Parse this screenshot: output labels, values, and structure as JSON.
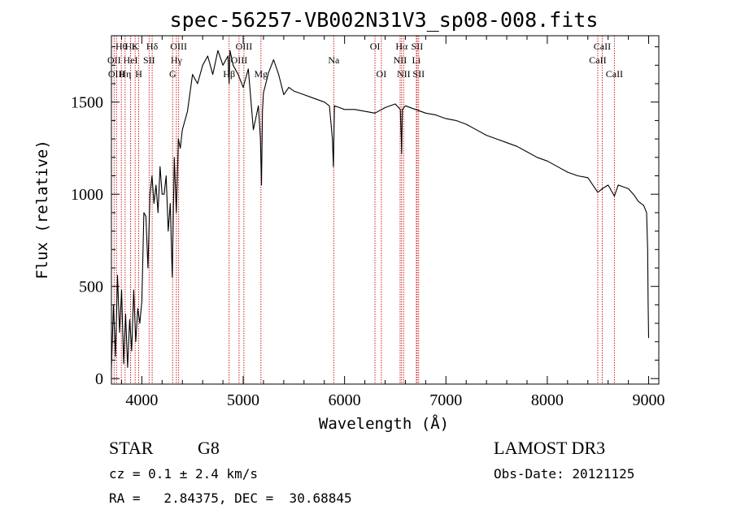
{
  "chart_data": {
    "type": "line",
    "title": "spec-56257-VB002N31V3_sp08-008.fits",
    "xlabel": "Wavelength (Å)",
    "ylabel": "Flux (relative)",
    "xlim": [
      3700,
      9100
    ],
    "ylim": [
      -30,
      1860
    ],
    "xticks": [
      4000,
      5000,
      6000,
      7000,
      8000,
      9000
    ],
    "yticks": [
      0,
      500,
      1000,
      1500
    ],
    "series": [
      {
        "name": "flux",
        "x": [
          3700,
          3720,
          3740,
          3760,
          3780,
          3800,
          3820,
          3840,
          3860,
          3880,
          3900,
          3920,
          3940,
          3960,
          3980,
          4000,
          4020,
          4040,
          4060,
          4080,
          4100,
          4120,
          4140,
          4160,
          4180,
          4200,
          4220,
          4240,
          4260,
          4280,
          4300,
          4320,
          4340,
          4360,
          4380,
          4400,
          4450,
          4500,
          4550,
          4600,
          4650,
          4700,
          4750,
          4800,
          4850,
          4861,
          4870,
          4900,
          4950,
          5000,
          5050,
          5100,
          5150,
          5170,
          5180,
          5190,
          5200,
          5250,
          5300,
          5350,
          5400,
          5450,
          5500,
          5600,
          5700,
          5800,
          5850,
          5880,
          5890,
          5896,
          5900,
          5950,
          6000,
          6100,
          6200,
          6300,
          6400,
          6500,
          6550,
          6560,
          6563,
          6570,
          6600,
          6700,
          6800,
          6900,
          7000,
          7100,
          7200,
          7300,
          7400,
          7500,
          7600,
          7700,
          7800,
          7900,
          8000,
          8100,
          8200,
          8300,
          8400,
          8498,
          8542,
          8600,
          8662,
          8700,
          8800,
          8850,
          8900,
          8950,
          8980,
          8990,
          8995,
          9000
        ],
        "values": [
          50,
          400,
          120,
          560,
          250,
          480,
          80,
          350,
          60,
          320,
          150,
          480,
          200,
          380,
          300,
          420,
          900,
          880,
          600,
          1000,
          1100,
          950,
          1050,
          900,
          1150,
          1000,
          1000,
          1100,
          800,
          950,
          550,
          1200,
          900,
          1300,
          1250,
          1350,
          1450,
          1650,
          1600,
          1700,
          1750,
          1650,
          1780,
          1700,
          1750,
          1600,
          1780,
          1700,
          1650,
          1580,
          1680,
          1350,
          1480,
          1300,
          1050,
          1450,
          1550,
          1660,
          1730,
          1650,
          1540,
          1580,
          1560,
          1540,
          1520,
          1500,
          1480,
          1300,
          1150,
          1350,
          1480,
          1470,
          1460,
          1460,
          1450,
          1440,
          1470,
          1490,
          1460,
          1300,
          1220,
          1460,
          1480,
          1460,
          1440,
          1430,
          1410,
          1400,
          1380,
          1350,
          1320,
          1300,
          1280,
          1260,
          1230,
          1200,
          1180,
          1150,
          1120,
          1100,
          1090,
          1010,
          1030,
          1050,
          990,
          1050,
          1030,
          1000,
          960,
          940,
          900,
          700,
          400,
          220
        ]
      }
    ],
    "line_markers": [
      {
        "label": "Hθ",
        "wl": 3798,
        "row": 1
      },
      {
        "label": "OII",
        "wl": 3727,
        "row": 2
      },
      {
        "label": "OIII",
        "wl": 3750,
        "row": 3
      },
      {
        "label": "Hε",
        "wl": 3889,
        "row": 1
      },
      {
        "label": "HeI",
        "wl": 3889,
        "row": 2
      },
      {
        "label": "Hη",
        "wl": 3835,
        "row": 3
      },
      {
        "label": "K",
        "wl": 3934,
        "row": 1
      },
      {
        "label": "SII",
        "wl": 4072,
        "row": 2
      },
      {
        "label": "H",
        "wl": 3969,
        "row": 3
      },
      {
        "label": "Hδ",
        "wl": 4102,
        "row": 1
      },
      {
        "label": "OIII",
        "wl": 4363,
        "row": 1
      },
      {
        "label": "Hγ",
        "wl": 4341,
        "row": 2
      },
      {
        "label": "G",
        "wl": 4304,
        "row": 3
      },
      {
        "label": "OIII",
        "wl": 5007,
        "row": 1
      },
      {
        "label": "OIII",
        "wl": 4959,
        "row": 2
      },
      {
        "label": "Hβ",
        "wl": 4861,
        "row": 3
      },
      {
        "label": "Mg",
        "wl": 5175,
        "row": 3
      },
      {
        "label": "Na",
        "wl": 5893,
        "row": 2
      },
      {
        "label": "OI",
        "wl": 6300,
        "row": 1
      },
      {
        "label": "OI",
        "wl": 6363,
        "row": 3
      },
      {
        "label": "Hα",
        "wl": 6563,
        "row": 1
      },
      {
        "label": "SII",
        "wl": 6716,
        "row": 1
      },
      {
        "label": "NII",
        "wl": 6548,
        "row": 2
      },
      {
        "label": "Li",
        "wl": 6708,
        "row": 2
      },
      {
        "label": "NII",
        "wl": 6583,
        "row": 3
      },
      {
        "label": "SII",
        "wl": 6731,
        "row": 3
      },
      {
        "label": "CaII",
        "wl": 8542,
        "row": 1
      },
      {
        "label": "CaII",
        "wl": 8498,
        "row": 2
      },
      {
        "label": "CaII",
        "wl": 8662,
        "row": 3
      }
    ]
  },
  "info": {
    "class_label": "STAR",
    "subclass": "G8",
    "survey": "LAMOST DR3",
    "redshift": "cz = 0.1 ± 2.4 km/s",
    "obs_date": "Obs-Date: 20121125",
    "coords": "RA =   2.84375, DEC =  30.68845"
  },
  "colors": {
    "line_marker": "#cc2222",
    "spectrum": "#000000"
  }
}
